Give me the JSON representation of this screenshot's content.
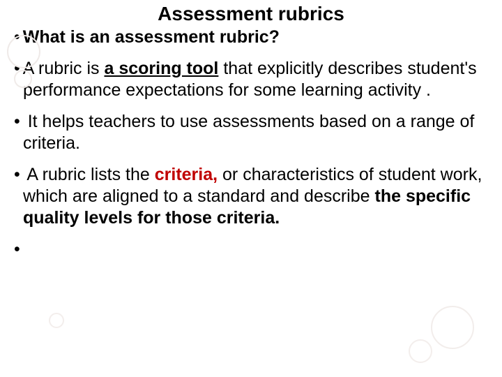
{
  "colors": {
    "accent_red": "#c00000",
    "text": "#000000",
    "bg": "#ffffff",
    "circle_stroke": "#efeae8"
  },
  "title": "Assessment rubrics",
  "bullets": {
    "b1": {
      "t1": "What is an assessment rubric?"
    },
    "b2": {
      "t1": "A rubric is ",
      "t2": "a scoring tool",
      "t3": " that explicitly describes student's performance expectations for some learning activity ."
    },
    "b3": {
      "t1": " It helps teachers to use assessments based on a range of criteria."
    },
    "b4": {
      "t1": " A rubric lists the ",
      "t2": "criteria,",
      "t3": " or characteristics of student work, which are aligned to a standard and describe ",
      "t4": "the specific quality levels for those criteria."
    },
    "b5": {
      "t1": ""
    }
  }
}
